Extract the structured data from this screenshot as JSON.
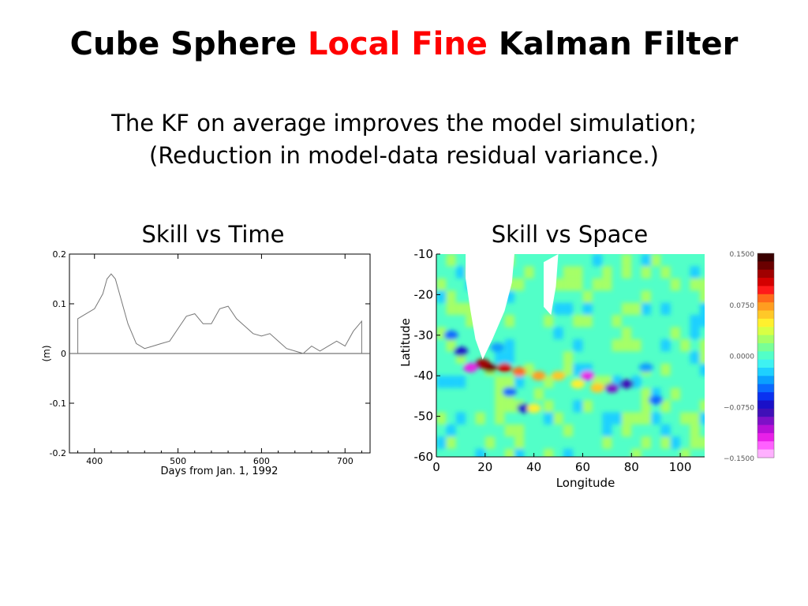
{
  "slide": {
    "title_parts": [
      {
        "text": "Cube Sphere ",
        "color": "#000000"
      },
      {
        "text": "Local Fine",
        "color": "#ff0000"
      },
      {
        "text": " Kalman Filter",
        "color": "#000000"
      }
    ],
    "subtitle_lines": [
      "The KF on average improves the model simulation;",
      "(Reduction in model-data residual variance.)"
    ]
  },
  "chart_data": [
    {
      "type": "line",
      "panel_title": "Skill vs Time",
      "xlabel": "Days from Jan. 1, 1992",
      "ylabel": "(m)",
      "xlim": [
        370,
        730
      ],
      "ylim": [
        -0.2,
        0.2
      ],
      "xticks": [
        400,
        500,
        600,
        700
      ],
      "xtick_labels": [
        "400",
        "500",
        "600",
        "700"
      ],
      "yticks": [
        0.2,
        0.1,
        0,
        -0.1,
        -0.2
      ],
      "ytick_labels": [
        "0.2",
        "0.1",
        "0",
        "-0.1",
        "-0.2"
      ],
      "zero_line": true,
      "line_color": "#777777",
      "series": [
        {
          "x": [
            380,
            390,
            400,
            410,
            415,
            420,
            425,
            430,
            440,
            450,
            460,
            470,
            480,
            490,
            500,
            510,
            520,
            530,
            540,
            550,
            560,
            570,
            580,
            590,
            600,
            610,
            620,
            630,
            640,
            650,
            660,
            670,
            680,
            690,
            700,
            710,
            720
          ],
          "y": [
            0.07,
            0.08,
            0.09,
            0.12,
            0.15,
            0.16,
            0.15,
            0.12,
            0.06,
            0.02,
            0.01,
            0.015,
            0.02,
            0.025,
            0.05,
            0.075,
            0.08,
            0.06,
            0.06,
            0.09,
            0.095,
            0.07,
            0.055,
            0.04,
            0.035,
            0.04,
            0.025,
            0.01,
            0.005,
            0.0,
            0.015,
            0.005,
            0.015,
            0.025,
            0.015,
            0.045,
            0.065
          ]
        }
      ]
    },
    {
      "type": "heatmap",
      "panel_title": "Skill vs Space",
      "xlabel": "Longitude",
      "ylabel": "Latitude",
      "xlim": [
        0,
        110
      ],
      "ylim": [
        -60,
        -10
      ],
      "xticks": [
        0,
        20,
        40,
        60,
        80,
        100
      ],
      "xtick_labels": [
        "0",
        "20",
        "40",
        "60",
        "80",
        "100"
      ],
      "yticks": [
        -10,
        -20,
        -30,
        -40,
        -50,
        -60
      ],
      "ytick_labels": [
        "-10",
        "-20",
        "-30",
        "-40",
        "-50",
        "-60"
      ],
      "background_value": 0.0,
      "land_color": "#ffffff",
      "land_mask": [
        {
          "name": "africa",
          "points": [
            [
              12,
              -10
            ],
            [
              32,
              -10
            ],
            [
              31,
              -17
            ],
            [
              28,
              -24
            ],
            [
              23,
              -31
            ],
            [
              19,
              -36
            ],
            [
              16,
              -31
            ],
            [
              14,
              -24
            ],
            [
              12,
              -16
            ]
          ]
        },
        {
          "name": "madagascar",
          "points": [
            [
              44,
              -12
            ],
            [
              50,
              -10
            ],
            [
              49,
              -18
            ],
            [
              47,
              -25
            ],
            [
              44,
              -23
            ]
          ]
        }
      ],
      "features": [
        {
          "lon": 22,
          "lat": -38,
          "value": 0.14
        },
        {
          "lon": 19,
          "lat": -37,
          "value": 0.12
        },
        {
          "lon": 28,
          "lat": -38,
          "value": 0.11
        },
        {
          "lon": 34,
          "lat": -39,
          "value": 0.09
        },
        {
          "lon": 42,
          "lat": -40,
          "value": 0.07
        },
        {
          "lon": 50,
          "lat": -40,
          "value": 0.06
        },
        {
          "lon": 58,
          "lat": -42,
          "value": 0.05
        },
        {
          "lon": 66,
          "lat": -43,
          "value": 0.06
        },
        {
          "lon": 72,
          "lat": -43,
          "value": -0.1
        },
        {
          "lon": 14,
          "lat": -38,
          "value": -0.13
        },
        {
          "lon": 10,
          "lat": -34,
          "value": -0.07
        },
        {
          "lon": 6,
          "lat": -30,
          "value": -0.05
        },
        {
          "lon": 62,
          "lat": -40,
          "value": -0.12
        },
        {
          "lon": 78,
          "lat": -42,
          "value": -0.09
        },
        {
          "lon": 36,
          "lat": -48,
          "value": -0.07
        },
        {
          "lon": 40,
          "lat": -48,
          "value": 0.05
        },
        {
          "lon": 30,
          "lat": -44,
          "value": -0.05
        },
        {
          "lon": 90,
          "lat": -46,
          "value": -0.05
        },
        {
          "lon": 86,
          "lat": -38,
          "value": -0.04
        },
        {
          "lon": 25,
          "lat": -33,
          "value": -0.04
        }
      ],
      "colorbar": {
        "range": [
          -0.15,
          0.15
        ],
        "tick_values": [
          0.15,
          0.075,
          0.0,
          -0.075,
          -0.15
        ],
        "tick_labels": [
          "0.1500",
          "0.0750",
          "0.0000",
          "−0.0750",
          "−0.1500"
        ],
        "colors_top_to_bottom": [
          "#3a0000",
          "#6a0000",
          "#a00000",
          "#d40000",
          "#ff1a1a",
          "#ff6a1a",
          "#ff9d20",
          "#ffc828",
          "#fff02e",
          "#d8ff44",
          "#a6ff66",
          "#78ff96",
          "#52ffc8",
          "#3ef2f2",
          "#1ed0ff",
          "#0aa0ff",
          "#0a6aff",
          "#0a32f0",
          "#1a10c8",
          "#4010b8",
          "#7e10c8",
          "#b810d8",
          "#e820e8",
          "#ff60ff",
          "#ffb0ff"
        ]
      }
    }
  ]
}
